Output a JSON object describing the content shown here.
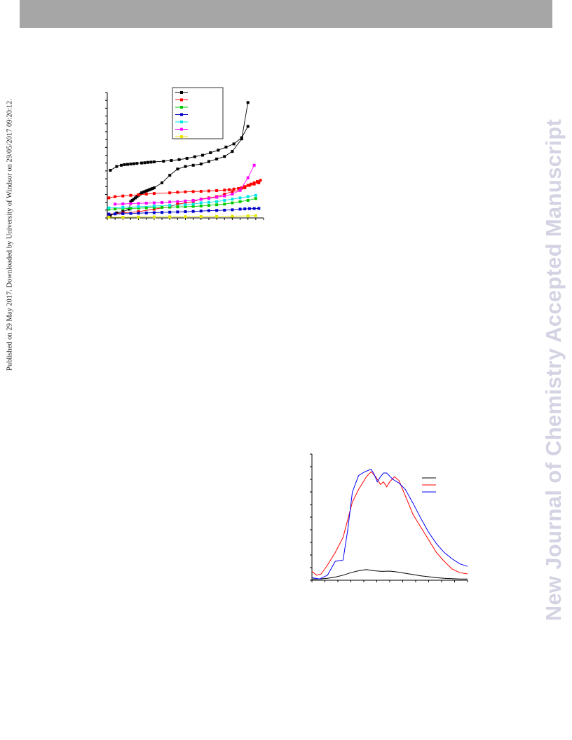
{
  "header": {
    "bar_color": "#a6a6a6"
  },
  "sidebar_left": {
    "text": "Published on 29 May 2017. Downloaded by University of Windsor on 29/05/2017 09:20:12."
  },
  "sidebar_right": {
    "text": "New Journal of Chemistry Accepted Manuscript",
    "color": "#d3d3e3"
  },
  "chart_data": [
    {
      "type": "line",
      "title": "",
      "xlabel": "",
      "ylabel": "",
      "xlim": [
        0,
        1
      ],
      "ylim": [
        0,
        1
      ],
      "legend": "top-right",
      "series": [
        {
          "color": "#000000",
          "marker": "square",
          "x": [
            0.02,
            0.06,
            0.09,
            0.11,
            0.13,
            0.15,
            0.17,
            0.19,
            0.22,
            0.24,
            0.26,
            0.28,
            0.3,
            0.36,
            0.41,
            0.46,
            0.51,
            0.56,
            0.61,
            0.66,
            0.71,
            0.76,
            0.81,
            0.86,
            0.9
          ],
          "y": [
            0.38,
            0.41,
            0.42,
            0.425,
            0.427,
            0.43,
            0.432,
            0.435,
            0.438,
            0.44,
            0.443,
            0.445,
            0.447,
            0.452,
            0.458,
            0.465,
            0.475,
            0.488,
            0.5,
            0.52,
            0.54,
            0.565,
            0.59,
            0.64,
            0.73
          ]
        },
        {
          "color": "#000000",
          "marker": "square",
          "x": [
            0.02,
            0.06,
            0.1,
            0.14,
            0.15,
            0.16,
            0.17,
            0.18,
            0.19,
            0.2,
            0.21,
            0.22,
            0.23,
            0.24,
            0.25,
            0.26,
            0.27,
            0.28,
            0.29,
            0.3,
            0.35,
            0.4,
            0.45,
            0.5,
            0.55,
            0.6,
            0.65,
            0.7,
            0.75,
            0.8,
            0.86,
            0.9
          ],
          "y": [
            0.02,
            0.04,
            0.05,
            0.07,
            0.13,
            0.14,
            0.15,
            0.16,
            0.17,
            0.18,
            0.19,
            0.2,
            0.205,
            0.21,
            0.215,
            0.22,
            0.225,
            0.23,
            0.235,
            0.24,
            0.28,
            0.34,
            0.39,
            0.41,
            0.42,
            0.43,
            0.45,
            0.47,
            0.49,
            0.53,
            0.63,
            0.92
          ]
        },
        {
          "color": "#ff0000",
          "marker": "square",
          "x": [
            0.01,
            0.05,
            0.1,
            0.15,
            0.2,
            0.25,
            0.3,
            0.4,
            0.45,
            0.5,
            0.55,
            0.6,
            0.65,
            0.7,
            0.75,
            0.78,
            0.81,
            0.84,
            0.86,
            0.88,
            0.9,
            0.92,
            0.94,
            0.96,
            0.98
          ],
          "y": [
            0.16,
            0.17,
            0.175,
            0.18,
            0.185,
            0.19,
            0.195,
            0.2,
            0.205,
            0.208,
            0.21,
            0.212,
            0.215,
            0.218,
            0.222,
            0.225,
            0.23,
            0.235,
            0.24,
            0.25,
            0.26,
            0.27,
            0.28,
            0.29,
            0.3
          ]
        },
        {
          "color": "#ff0000",
          "marker": "square",
          "x": [
            0.01,
            0.1,
            0.2,
            0.3,
            0.4,
            0.45,
            0.5,
            0.55,
            0.6,
            0.65,
            0.7,
            0.75,
            0.8,
            0.85,
            0.88,
            0.91,
            0.94,
            0.97
          ],
          "y": [
            0.03,
            0.04,
            0.05,
            0.07,
            0.09,
            0.11,
            0.12,
            0.13,
            0.15,
            0.16,
            0.17,
            0.19,
            0.21,
            0.22,
            0.24,
            0.26,
            0.27,
            0.28
          ]
        },
        {
          "color": "#00cc00",
          "marker": "square",
          "x": [
            0.01,
            0.05,
            0.1,
            0.15,
            0.2,
            0.25,
            0.3,
            0.35,
            0.4,
            0.45,
            0.5,
            0.55,
            0.6,
            0.65,
            0.7,
            0.75,
            0.8,
            0.85,
            0.9,
            0.95
          ],
          "y": [
            0.07,
            0.072,
            0.074,
            0.076,
            0.078,
            0.08,
            0.082,
            0.084,
            0.086,
            0.088,
            0.09,
            0.092,
            0.095,
            0.1,
            0.105,
            0.11,
            0.12,
            0.13,
            0.14,
            0.155
          ]
        },
        {
          "color": "#0000cc",
          "marker": "square",
          "x": [
            0.01,
            0.05,
            0.1,
            0.15,
            0.2,
            0.25,
            0.3,
            0.35,
            0.4,
            0.45,
            0.5,
            0.55,
            0.6,
            0.65,
            0.7,
            0.75,
            0.8,
            0.85,
            0.88,
            0.91,
            0.94,
            0.97
          ],
          "y": [
            0.03,
            0.032,
            0.034,
            0.036,
            0.038,
            0.04,
            0.042,
            0.044,
            0.046,
            0.048,
            0.05,
            0.052,
            0.055,
            0.058,
            0.06,
            0.062,
            0.065,
            0.07,
            0.072,
            0.074,
            0.075,
            0.076
          ]
        },
        {
          "color": "#00e5e5",
          "marker": "square",
          "x": [
            0.01,
            0.1,
            0.2,
            0.3,
            0.4,
            0.5,
            0.55,
            0.6,
            0.65,
            0.7,
            0.75,
            0.8,
            0.85,
            0.9,
            0.95
          ],
          "y": [
            0.08,
            0.085,
            0.09,
            0.095,
            0.1,
            0.105,
            0.11,
            0.12,
            0.125,
            0.13,
            0.14,
            0.15,
            0.16,
            0.17,
            0.18
          ]
        },
        {
          "color": "#ff00ff",
          "marker": "square",
          "x": [
            0.05,
            0.1,
            0.15,
            0.2,
            0.25,
            0.3,
            0.35,
            0.4,
            0.45,
            0.5,
            0.55,
            0.6,
            0.65,
            0.7,
            0.75,
            0.8,
            0.85,
            0.9,
            0.94
          ],
          "y": [
            0.11,
            0.112,
            0.114,
            0.116,
            0.118,
            0.12,
            0.123,
            0.127,
            0.13,
            0.135,
            0.14,
            0.148,
            0.156,
            0.165,
            0.175,
            0.19,
            0.22,
            0.32,
            0.42
          ]
        },
        {
          "color": "#e6e600",
          "marker": "square",
          "x": [
            0.01,
            0.1,
            0.2,
            0.3,
            0.4,
            0.5,
            0.6,
            0.7,
            0.8,
            0.9,
            0.95
          ],
          "y": [
            0.005,
            0.006,
            0.007,
            0.008,
            0.009,
            0.01,
            0.011,
            0.012,
            0.014,
            0.016,
            0.018
          ]
        }
      ],
      "legend_entries": [
        {
          "color": "#000000"
        },
        {
          "color": "#ff0000"
        },
        {
          "color": "#00cc00"
        },
        {
          "color": "#0000cc"
        },
        {
          "color": "#00e5e5"
        },
        {
          "color": "#ff00ff"
        },
        {
          "color": "#e6e600"
        }
      ]
    },
    {
      "type": "line",
      "title": "",
      "xlabel": "",
      "ylabel": "",
      "xlim": [
        0,
        1
      ],
      "ylim": [
        0,
        1
      ],
      "legend": "top-right",
      "series": [
        {
          "color": "#000000",
          "x": [
            0.0,
            0.05,
            0.1,
            0.15,
            0.2,
            0.25,
            0.3,
            0.35,
            0.4,
            0.45,
            0.5,
            0.55,
            0.6,
            0.65,
            0.7,
            0.75,
            0.8,
            0.85,
            0.9,
            0.95,
            1.0
          ],
          "y": [
            0.01,
            0.01,
            0.015,
            0.025,
            0.04,
            0.06,
            0.075,
            0.085,
            0.075,
            0.07,
            0.072,
            0.065,
            0.055,
            0.045,
            0.035,
            0.028,
            0.02,
            0.015,
            0.012,
            0.01,
            0.01
          ]
        },
        {
          "color": "#ff0000",
          "x": [
            0.0,
            0.03,
            0.06,
            0.1,
            0.15,
            0.2,
            0.23,
            0.26,
            0.3,
            0.35,
            0.38,
            0.41,
            0.44,
            0.46,
            0.48,
            0.5,
            0.53,
            0.56,
            0.6,
            0.65,
            0.7,
            0.75,
            0.8,
            0.85,
            0.9,
            0.95,
            1.0
          ],
          "y": [
            0.07,
            0.04,
            0.05,
            0.12,
            0.22,
            0.34,
            0.48,
            0.62,
            0.72,
            0.82,
            0.86,
            0.82,
            0.76,
            0.78,
            0.74,
            0.78,
            0.82,
            0.79,
            0.67,
            0.52,
            0.42,
            0.32,
            0.22,
            0.15,
            0.09,
            0.06,
            0.05
          ]
        },
        {
          "color": "#0000ff",
          "x": [
            0.0,
            0.05,
            0.1,
            0.15,
            0.2,
            0.23,
            0.26,
            0.3,
            0.34,
            0.38,
            0.4,
            0.42,
            0.44,
            0.46,
            0.48,
            0.52,
            0.56,
            0.6,
            0.65,
            0.7,
            0.75,
            0.8,
            0.85,
            0.9,
            0.95,
            1.0
          ],
          "y": [
            0.02,
            0.01,
            0.04,
            0.15,
            0.16,
            0.4,
            0.7,
            0.83,
            0.86,
            0.88,
            0.84,
            0.78,
            0.82,
            0.85,
            0.85,
            0.8,
            0.77,
            0.72,
            0.61,
            0.49,
            0.38,
            0.29,
            0.22,
            0.17,
            0.13,
            0.11
          ]
        }
      ],
      "legend_entries": [
        {
          "color": "#000000"
        },
        {
          "color": "#ff0000"
        },
        {
          "color": "#0000ff"
        }
      ]
    }
  ]
}
